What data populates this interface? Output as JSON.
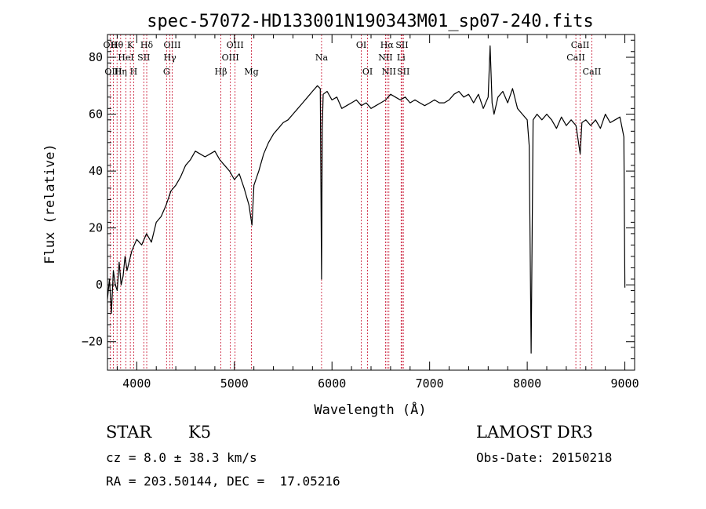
{
  "chart_data": {
    "type": "line",
    "title": "spec-57072-HD133001N190343M01_sp07-240.fits",
    "xlabel": "Wavelength (Å)",
    "ylabel": "Flux (relative)",
    "xlim": [
      3700,
      9100
    ],
    "ylim": [
      -30,
      88
    ],
    "x_ticks": [
      4000,
      5000,
      6000,
      7000,
      8000,
      9000
    ],
    "x_tick_labels": [
      "4000",
      "5000",
      "6000",
      "7000",
      "8000",
      "9000"
    ],
    "y_ticks": [
      -20,
      0,
      20,
      40,
      60,
      80
    ],
    "y_tick_labels": [
      "−20",
      "0",
      "20",
      "40",
      "60",
      "80"
    ],
    "series": [
      {
        "name": "spectrum",
        "x": [
          3700,
          3720,
          3740,
          3760,
          3780,
          3800,
          3820,
          3840,
          3860,
          3880,
          3900,
          3950,
          4000,
          4050,
          4100,
          4150,
          4200,
          4250,
          4300,
          4350,
          4400,
          4450,
          4500,
          4550,
          4600,
          4650,
          4700,
          4750,
          4800,
          4850,
          4900,
          4950,
          5000,
          5050,
          5100,
          5150,
          5180,
          5200,
          5250,
          5300,
          5350,
          5400,
          5450,
          5500,
          5550,
          5600,
          5650,
          5700,
          5750,
          5800,
          5850,
          5880,
          5893,
          5900,
          5910,
          5950,
          6000,
          6050,
          6100,
          6150,
          6200,
          6250,
          6300,
          6350,
          6400,
          6450,
          6500,
          6550,
          6600,
          6650,
          6700,
          6750,
          6800,
          6850,
          6900,
          6950,
          7000,
          7050,
          7100,
          7150,
          7200,
          7250,
          7300,
          7350,
          7400,
          7450,
          7500,
          7550,
          7600,
          7620,
          7640,
          7660,
          7700,
          7750,
          7800,
          7850,
          7900,
          7950,
          8000,
          8020,
          8040,
          8060,
          8100,
          8150,
          8200,
          8250,
          8300,
          8350,
          8400,
          8450,
          8500,
          8542,
          8560,
          8600,
          8650,
          8700,
          8750,
          8800,
          8850,
          8900,
          8950,
          8990,
          9000
        ],
        "y": [
          -5,
          2,
          -10,
          5,
          0,
          -2,
          8,
          0,
          3,
          10,
          5,
          12,
          16,
          14,
          18,
          15,
          22,
          24,
          28,
          33,
          35,
          38,
          42,
          44,
          47,
          46,
          45,
          46,
          47,
          44,
          42,
          40,
          37,
          39,
          34,
          28,
          21,
          35,
          40,
          46,
          50,
          53,
          55,
          57,
          58,
          60,
          62,
          64,
          66,
          68,
          70,
          69,
          2,
          55,
          67,
          68,
          65,
          66,
          62,
          63,
          64,
          65,
          63,
          64,
          62,
          63,
          64,
          65,
          67,
          66,
          65,
          66,
          64,
          65,
          64,
          63,
          64,
          65,
          64,
          64,
          65,
          67,
          68,
          66,
          67,
          64,
          67,
          62,
          66,
          84,
          64,
          60,
          66,
          68,
          64,
          69,
          62,
          60,
          58,
          49,
          -24,
          58,
          60,
          58,
          60,
          58,
          55,
          59,
          56,
          58,
          56,
          46,
          57,
          58,
          56,
          58,
          55,
          60,
          57,
          58,
          59,
          52,
          -1
        ]
      }
    ],
    "line_markers": [
      {
        "label": "Hθ",
        "wavelength": 3798,
        "row": 1
      },
      {
        "label": "OII",
        "wavelength": 3727,
        "row": 1
      },
      {
        "label": "OIII",
        "wavelength": 3760,
        "row": 3
      },
      {
        "label": "HeI",
        "wavelength": 3889,
        "row": 2
      },
      {
        "label": "K",
        "wavelength": 3934,
        "row": 1
      },
      {
        "label": "Hη",
        "wavelength": 3835,
        "row": 3
      },
      {
        "label": "SII",
        "wavelength": 4072,
        "row": 2
      },
      {
        "label": "H",
        "wavelength": 3969,
        "row": 3
      },
      {
        "label": "Hδ",
        "wavelength": 4102,
        "row": 1
      },
      {
        "label": "OIII",
        "wavelength": 4363,
        "row": 1
      },
      {
        "label": "Hγ",
        "wavelength": 4340,
        "row": 2
      },
      {
        "label": "G",
        "wavelength": 4305,
        "row": 3
      },
      {
        "label": "OIII",
        "wavelength": 5007,
        "row": 1
      },
      {
        "label": "OIII",
        "wavelength": 4959,
        "row": 2
      },
      {
        "label": "Hβ",
        "wavelength": 4861,
        "row": 3
      },
      {
        "label": "Mg",
        "wavelength": 5175,
        "row": 3
      },
      {
        "label": "Na",
        "wavelength": 5893,
        "row": 2
      },
      {
        "label": "OI",
        "wavelength": 6300,
        "row": 1
      },
      {
        "label": "OI",
        "wavelength": 6364,
        "row": 3
      },
      {
        "label": "Hα",
        "wavelength": 6563,
        "row": 1
      },
      {
        "label": "NII",
        "wavelength": 6548,
        "row": 2
      },
      {
        "label": "NII",
        "wavelength": 6583,
        "row": 3
      },
      {
        "label": "SII",
        "wavelength": 6717,
        "row": 1
      },
      {
        "label": "Li",
        "wavelength": 6708,
        "row": 2
      },
      {
        "label": "SII",
        "wavelength": 6731,
        "row": 3
      },
      {
        "label": "CaII",
        "wavelength": 8542,
        "row": 1
      },
      {
        "label": "CaII",
        "wavelength": 8498,
        "row": 2
      },
      {
        "label": "CaII",
        "wavelength": 8662,
        "row": 3
      }
    ],
    "grid": false,
    "legend": "none"
  },
  "info": {
    "class_type": "STAR",
    "subclass": "K5",
    "survey": "LAMOST DR3",
    "redshift": "cz = 8.0 ± 38.3 km/s",
    "obs_date": "Obs-Date: 20150218",
    "coordinates": "RA = 203.50144, DEC =  17.05216"
  },
  "colors": {
    "spectrum": "#000000",
    "marker_line": "#c8102e",
    "axis": "#000000",
    "background": "#ffffff"
  }
}
